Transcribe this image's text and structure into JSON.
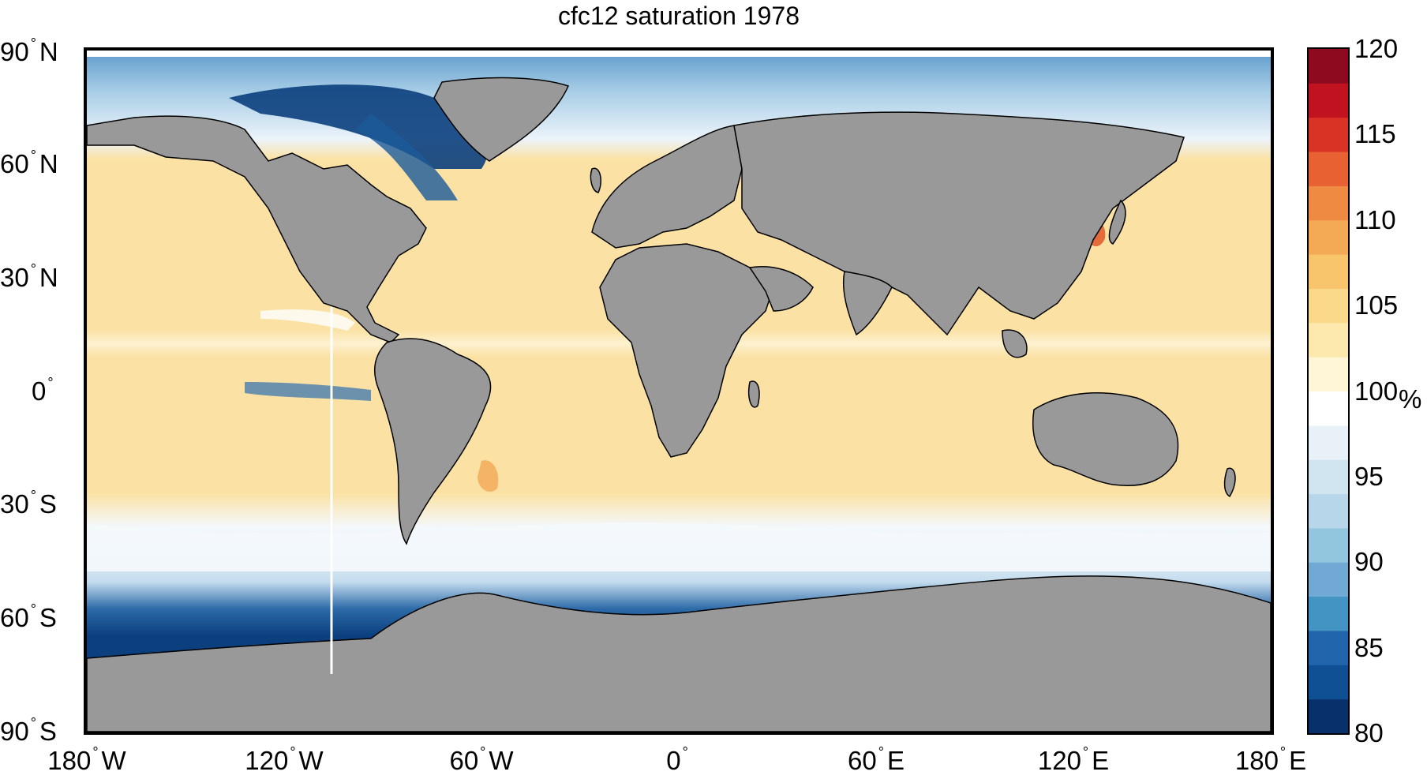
{
  "title": "cfc12 saturation 1978",
  "lat_ticks": [
    {
      "deg": "90",
      "hemi": "N"
    },
    {
      "deg": "60",
      "hemi": "N"
    },
    {
      "deg": "30",
      "hemi": "N"
    },
    {
      "deg": "0",
      "hemi": ""
    },
    {
      "deg": "30",
      "hemi": "S"
    },
    {
      "deg": "60",
      "hemi": "S"
    },
    {
      "deg": "90",
      "hemi": "S"
    }
  ],
  "lon_ticks": [
    {
      "deg": "180",
      "hemi": "W"
    },
    {
      "deg": "120",
      "hemi": "W"
    },
    {
      "deg": "60",
      "hemi": "W"
    },
    {
      "deg": "0",
      "hemi": ""
    },
    {
      "deg": "60",
      "hemi": "E"
    },
    {
      "deg": "120",
      "hemi": "E"
    },
    {
      "deg": "180",
      "hemi": "E"
    }
  ],
  "degree_symbol": "°",
  "colorbar": {
    "min": 80,
    "max": 120,
    "ticks": [
      "120",
      "115",
      "110",
      "105",
      "100",
      "95",
      "90",
      "85",
      "80"
    ],
    "unit": "%",
    "colors_low_to_high": [
      "#08306b",
      "#0f4f94",
      "#2166ac",
      "#4393c3",
      "#6fa9d4",
      "#92c5de",
      "#b7d6ea",
      "#d1e5f0",
      "#e9f1f8",
      "#ffffff",
      "#fff6d8",
      "#fde9ad",
      "#fbd98a",
      "#f8c46c",
      "#f4a955",
      "#ef8a43",
      "#e76132",
      "#d93325",
      "#c1121f",
      "#8e0a1e"
    ]
  },
  "map": {
    "land_color": "#999999",
    "ocean_subtropical": "#fbe2a4",
    "ocean_subpolar": "#e3eef7",
    "ocean_polar": "#0b3f7d"
  }
}
